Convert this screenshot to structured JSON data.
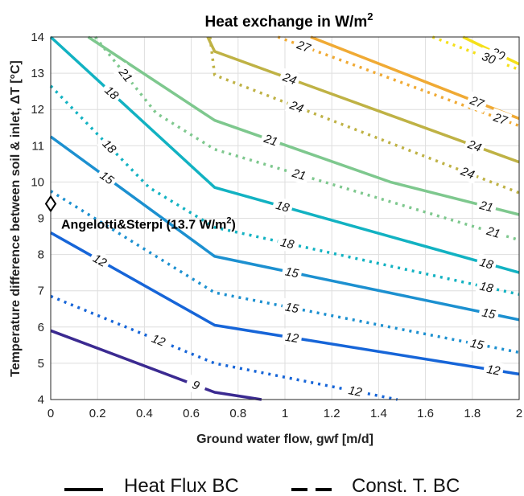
{
  "chart_data": {
    "type": "line",
    "title": "Heat exchange in W/m",
    "title_sup": "2",
    "xlabel": "Ground water flow, gwf [m/d]",
    "ylabel": "Temperature difference between soil & inlet, ΔT [°C]",
    "xlim": [
      0,
      2
    ],
    "ylim": [
      4,
      14
    ],
    "xticks": [
      "0",
      "0.2",
      "0.4",
      "0.6",
      "0.8",
      "1",
      "1.2",
      "1.4",
      "1.6",
      "1.8",
      "2"
    ],
    "yticks": [
      "4",
      "5",
      "6",
      "7",
      "8",
      "9",
      "10",
      "11",
      "12",
      "13",
      "14"
    ],
    "grid": true,
    "colors": {
      "9": "#3b2a91",
      "12": "#1665d8",
      "15": "#1c90d0",
      "18": "#12b2c2",
      "21": "#7ec88e",
      "24": "#bfb245",
      "27": "#f0aa34",
      "30": "#f5e01a"
    },
    "series": [
      {
        "bc": "Heat Flux BC",
        "level": "9",
        "x": [
          0,
          0.7,
          0.9
        ],
        "y": [
          5.9,
          4.2,
          4.0
        ],
        "labels": [
          {
            "text": "9",
            "x": 0.62
          }
        ]
      },
      {
        "bc": "Heat Flux BC",
        "level": "12",
        "x": [
          0,
          0.7,
          2
        ],
        "y": [
          8.6,
          6.05,
          4.7
        ],
        "labels": [
          {
            "text": "12",
            "x": 0.21
          },
          {
            "text": "12",
            "x": 1.03
          },
          {
            "text": "12",
            "x": 1.89
          }
        ]
      },
      {
        "bc": "Heat Flux BC",
        "level": "15",
        "x": [
          0,
          0.7,
          2
        ],
        "y": [
          11.25,
          7.95,
          6.2
        ],
        "labels": [
          {
            "text": "15",
            "x": 0.24
          },
          {
            "text": "15",
            "x": 1.03
          },
          {
            "text": "15",
            "x": 1.87
          }
        ]
      },
      {
        "bc": "Heat Flux BC",
        "level": "18",
        "x": [
          0,
          0.7,
          2
        ],
        "y": [
          14.0,
          9.85,
          7.5
        ],
        "labels": [
          {
            "text": "18",
            "x": 0.26
          },
          {
            "text": "18",
            "x": 0.99
          },
          {
            "text": "18",
            "x": 1.86
          }
        ]
      },
      {
        "bc": "Heat Flux BC",
        "level": "21",
        "x": [
          0.16,
          0.7,
          1.45,
          2
        ],
        "y": [
          14.0,
          11.7,
          10.0,
          9.1
        ],
        "labels": [
          {
            "text": "21",
            "x": 0.94
          },
          {
            "text": "21",
            "x": 1.86
          }
        ]
      },
      {
        "bc": "Heat Flux BC",
        "level": "24",
        "x": [
          0.67,
          0.7,
          2
        ],
        "y": [
          14.0,
          13.6,
          10.55
        ],
        "labels": [
          {
            "text": "24",
            "x": 1.02
          },
          {
            "text": "24",
            "x": 1.81
          }
        ]
      },
      {
        "bc": "Heat Flux BC",
        "level": "27",
        "x": [
          1.11,
          2
        ],
        "y": [
          14.0,
          11.75
        ],
        "labels": [
          {
            "text": "27",
            "x": 1.82
          }
        ]
      },
      {
        "bc": "Heat Flux BC",
        "level": "30",
        "x": [
          1.76,
          2
        ],
        "y": [
          14.0,
          13.25
        ],
        "labels": [
          {
            "text": "30",
            "x": 1.91
          }
        ]
      },
      {
        "bc": "Const. T. BC",
        "level": "12",
        "x": [
          0,
          0.7,
          1.48
        ],
        "y": [
          6.85,
          5.0,
          4.0
        ],
        "labels": [
          {
            "text": "12",
            "x": 0.46
          },
          {
            "text": "12",
            "x": 1.3
          }
        ]
      },
      {
        "bc": "Const. T. BC",
        "level": "15",
        "x": [
          0,
          0.7,
          2
        ],
        "y": [
          9.75,
          6.95,
          5.3
        ],
        "labels": [
          {
            "text": "15",
            "x": 1.03
          },
          {
            "text": "15",
            "x": 1.82
          }
        ]
      },
      {
        "bc": "Const. T. BC",
        "level": "18",
        "x": [
          0,
          0.42,
          0.7,
          2
        ],
        "y": [
          12.65,
          9.85,
          8.75,
          6.9
        ],
        "labels": [
          {
            "text": "18",
            "x": 0.25
          },
          {
            "text": "18",
            "x": 1.01
          },
          {
            "text": "18",
            "x": 1.86
          }
        ]
      },
      {
        "bc": "Const. T. BC",
        "level": "21",
        "x": [
          0.19,
          0.45,
          0.7,
          2
        ],
        "y": [
          14.0,
          11.9,
          10.9,
          8.4
        ],
        "labels": [
          {
            "text": "21",
            "x": 0.32
          },
          {
            "text": "21",
            "x": 1.06
          },
          {
            "text": "21",
            "x": 1.89
          }
        ]
      },
      {
        "bc": "Const. T. BC",
        "level": "24",
        "x": [
          0.68,
          0.7,
          2
        ],
        "y": [
          14.0,
          12.95,
          9.7
        ],
        "labels": [
          {
            "text": "24",
            "x": 1.05
          },
          {
            "text": "24",
            "x": 1.78
          }
        ]
      },
      {
        "bc": "Const. T. BC",
        "level": "27",
        "x": [
          0.97,
          2
        ],
        "y": [
          14.0,
          11.55
        ],
        "labels": [
          {
            "text": "27",
            "x": 1.08
          },
          {
            "text": "27",
            "x": 1.92
          }
        ]
      },
      {
        "bc": "Const. T. BC",
        "level": "30",
        "x": [
          1.63,
          2
        ],
        "y": [
          14.0,
          13.1
        ],
        "labels": [
          {
            "text": "30",
            "x": 1.87
          }
        ]
      }
    ],
    "marker": {
      "x": 0,
      "y": 9.4,
      "label": "Angelotti&Sterpi (13.7 W/m",
      "label_sup": "2",
      "label_end": ")"
    },
    "legend": [
      {
        "label": "Heat Flux BC",
        "style": "solid"
      },
      {
        "label": "Const. T. BC",
        "style": "dashed"
      }
    ]
  }
}
